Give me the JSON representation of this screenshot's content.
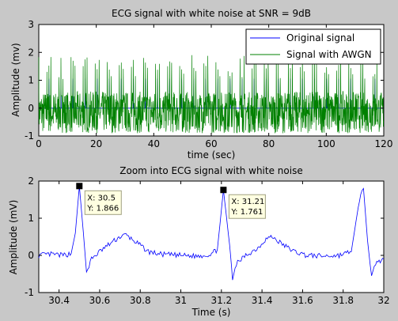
{
  "chart_data": [
    {
      "type": "line",
      "title": "ECG signal with white noise at SNR = 9dB",
      "xlabel": "time (sec)",
      "ylabel": "Amplitude (mv)",
      "xlim": [
        0,
        120
      ],
      "ylim": [
        -1,
        3
      ],
      "xticks": [
        "0",
        "20",
        "40",
        "60",
        "80",
        "100",
        "120"
      ],
      "yticks": [
        "-1",
        "0",
        "1",
        "2",
        "3"
      ],
      "legend_position": "top-right",
      "series": [
        {
          "name": "Original signal",
          "color": "#0000ff",
          "baseline": 0,
          "beat_peak": 1.8,
          "beat_period": 0.7
        },
        {
          "name": "Signal with AWGN",
          "color": "#008000",
          "baseline": 0,
          "beat_peak": 1.9,
          "beat_period": 0.7,
          "noise_range": [
            -0.9,
            0.6
          ]
        }
      ]
    },
    {
      "type": "line",
      "title": "Zoom into ECG signal with white noise",
      "xlabel": "Time (s)",
      "ylabel": "Amplitude (mV)",
      "xlim": [
        30.3,
        32
      ],
      "ylim": [
        -1,
        2
      ],
      "xticks": [
        "30.4",
        "30.6",
        "30.8",
        "31",
        "31.2",
        "31.4",
        "31.6",
        "31.8",
        "32"
      ],
      "yticks": [
        "-1",
        "0",
        "1",
        "2"
      ],
      "series": [
        {
          "name": "",
          "color": "#0000ff",
          "points": [
            [
              30.3,
              0.0
            ],
            [
              30.36,
              0.03
            ],
            [
              30.42,
              0.0
            ],
            [
              30.46,
              0.05
            ],
            [
              30.48,
              0.6
            ],
            [
              30.5,
              1.866
            ],
            [
              30.52,
              0.6
            ],
            [
              30.535,
              -0.45
            ],
            [
              30.56,
              -0.1
            ],
            [
              30.6,
              0.1
            ],
            [
              30.66,
              0.35
            ],
            [
              30.7,
              0.5
            ],
            [
              30.73,
              0.55
            ],
            [
              30.78,
              0.35
            ],
            [
              30.84,
              0.1
            ],
            [
              30.9,
              0.03
            ],
            [
              31.0,
              0.0
            ],
            [
              31.08,
              -0.02
            ],
            [
              31.14,
              0.02
            ],
            [
              31.18,
              0.15
            ],
            [
              31.21,
              1.761
            ],
            [
              31.24,
              0.3
            ],
            [
              31.255,
              -0.6
            ],
            [
              31.28,
              -0.2
            ],
            [
              31.32,
              0.0
            ],
            [
              31.38,
              0.2
            ],
            [
              31.42,
              0.45
            ],
            [
              31.45,
              0.5
            ],
            [
              31.5,
              0.3
            ],
            [
              31.56,
              0.1
            ],
            [
              31.62,
              0.0
            ],
            [
              31.7,
              -0.02
            ],
            [
              31.78,
              0.0
            ],
            [
              31.84,
              0.1
            ],
            [
              31.88,
              1.5
            ],
            [
              31.9,
              1.8
            ],
            [
              31.92,
              0.4
            ],
            [
              31.94,
              -0.6
            ],
            [
              31.96,
              -0.2
            ],
            [
              32.0,
              -0.1
            ]
          ]
        }
      ],
      "datatips": [
        {
          "x_label": "X: 30.5",
          "y_label": "Y: 1.866",
          "x": 30.5,
          "y": 1.866
        },
        {
          "x_label": "X: 31.21",
          "y_label": "Y: 1.761",
          "x": 31.21,
          "y": 1.761
        }
      ]
    }
  ]
}
